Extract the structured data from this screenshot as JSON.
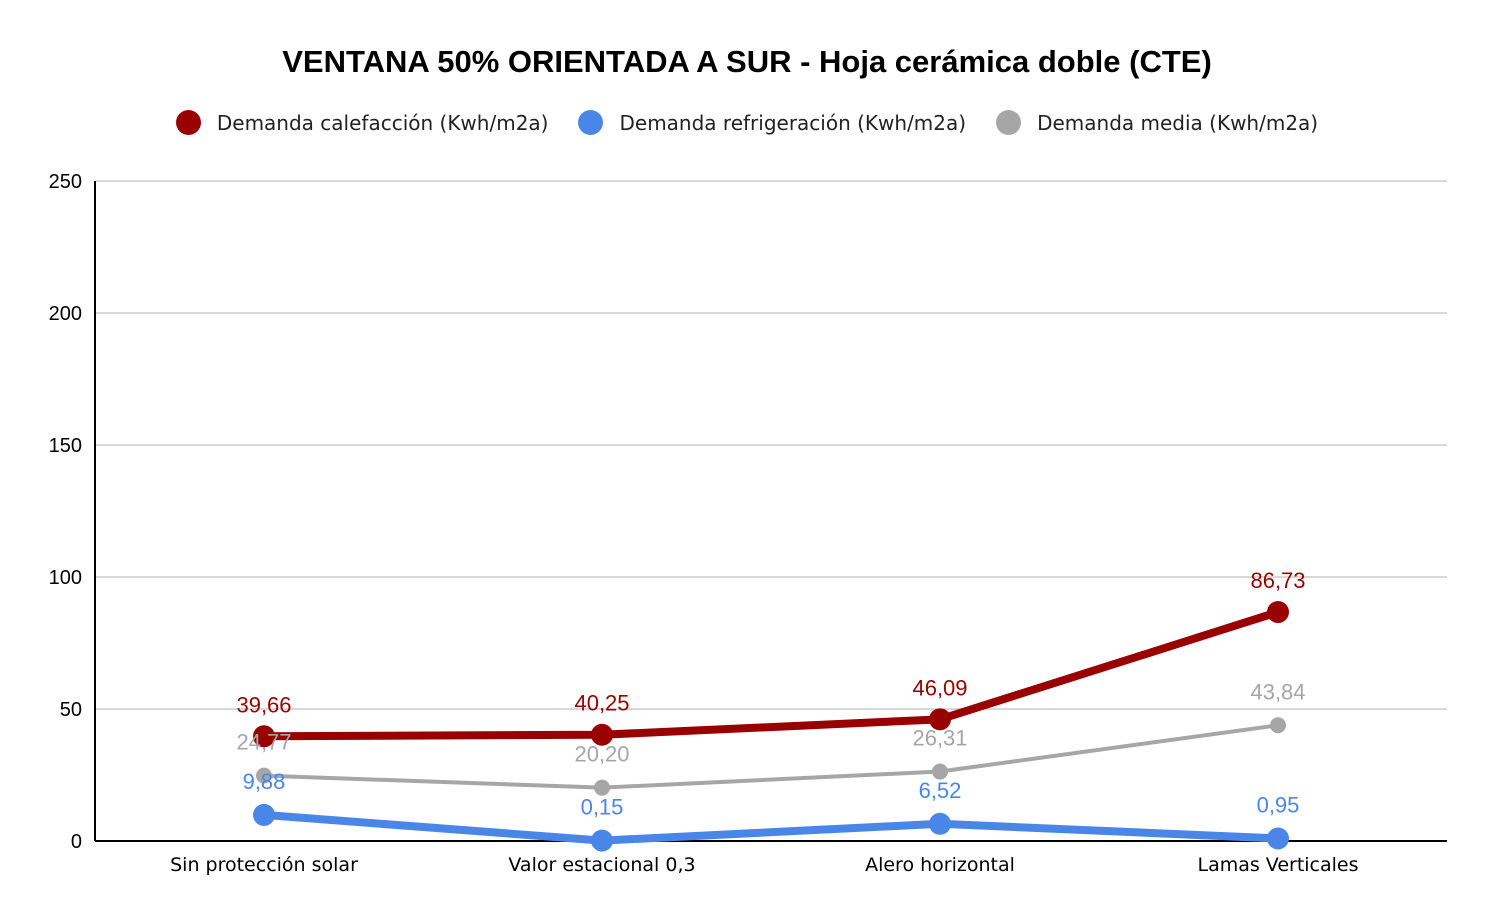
{
  "chart_data": {
    "type": "line",
    "title": "VENTANA 50% ORIENTADA A SUR - Hoja cerámica doble (CTE)",
    "categories": [
      "Sin protección solar",
      "Valor estacional 0,3",
      "Alero horizontal",
      "Lamas Verticales"
    ],
    "ylim": [
      0,
      250
    ],
    "yticks": [
      0,
      50,
      100,
      150,
      200,
      250
    ],
    "grid": true,
    "legend_position": "top",
    "series": [
      {
        "name": "Demanda calefacción (Kwh/m2a)",
        "color": "#990000",
        "values": [
          39.66,
          40.25,
          46.09,
          86.73
        ],
        "labels": [
          "39,66",
          "40,25",
          "46,09",
          "86,73"
        ]
      },
      {
        "name": "Demanda refrigeración (Kwh/m2a)",
        "color": "#4a86e8",
        "values": [
          9.88,
          0.15,
          6.52,
          0.95
        ],
        "labels": [
          "9,88",
          "0,15",
          "6,52",
          "0,95"
        ]
      },
      {
        "name": "Demanda media (Kwh/m2a)",
        "color": "#a6a6a6",
        "values": [
          24.77,
          20.2,
          26.31,
          43.84
        ],
        "labels": [
          "24,77",
          "20,20",
          "26,31",
          "43,84"
        ]
      }
    ]
  }
}
